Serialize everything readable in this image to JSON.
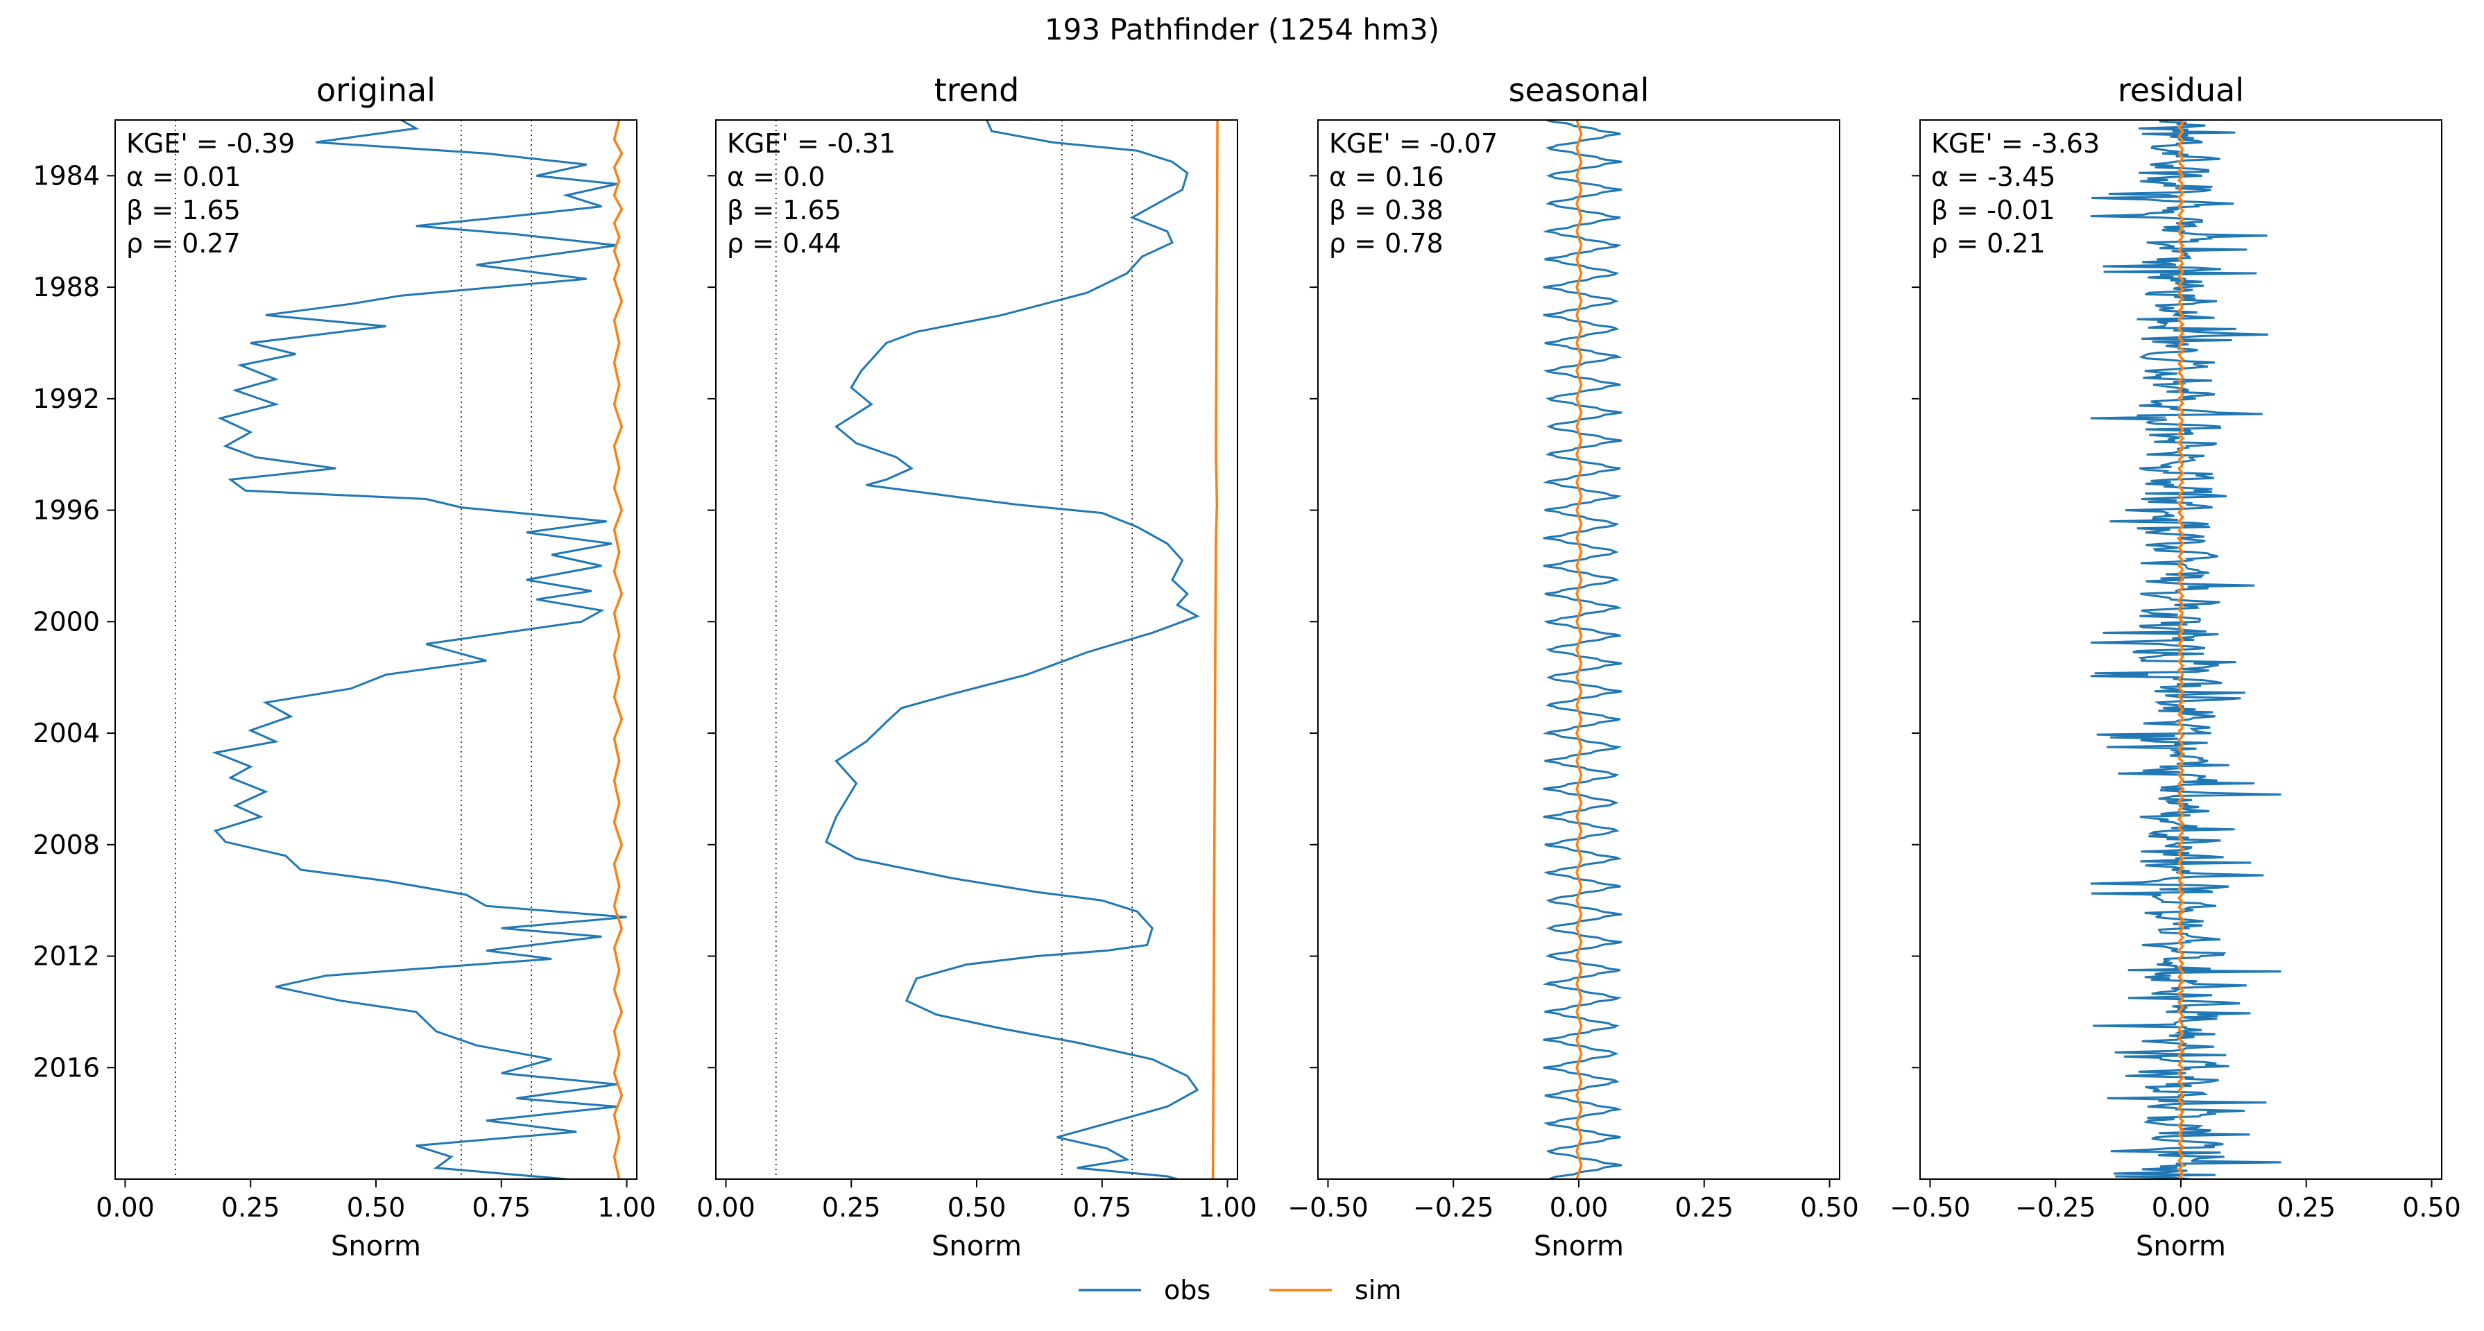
{
  "suptitle": "193  Pathfinder (1254 hm3)",
  "colors": {
    "obs": "#1f77b4",
    "sim": "#ff7f0e",
    "axis": "#000000"
  },
  "legend": {
    "obs_label": "obs",
    "sim_label": "sim",
    "placement": "lower-center"
  },
  "chart_data": [
    {
      "type": "line",
      "title": "original",
      "xlabel": "Snorm",
      "xlim": [
        -0.02,
        1.02
      ],
      "xticks": [
        "0.00",
        "0.25",
        "0.50",
        "0.75",
        "1.00"
      ],
      "ylim": [
        1982.0,
        2020.0
      ],
      "yticks": [
        "1984",
        "1988",
        "1992",
        "1996",
        "2000",
        "2004",
        "2008",
        "2012",
        "2016"
      ],
      "show_yticklabels": true,
      "vlines": [
        0.1,
        0.67,
        0.81
      ],
      "stats": [
        "KGE' = -0.39",
        "α = 0.01",
        "β = 1.65",
        "ρ = 0.27"
      ],
      "obs_points": [
        [
          0.55,
          1982.0
        ],
        [
          0.58,
          1982.3
        ],
        [
          0.38,
          1982.8
        ],
        [
          0.72,
          1983.2
        ],
        [
          0.92,
          1983.6
        ],
        [
          0.82,
          1984.0
        ],
        [
          0.98,
          1984.3
        ],
        [
          0.88,
          1984.7
        ],
        [
          0.95,
          1985.1
        ],
        [
          0.8,
          1985.4
        ],
        [
          0.58,
          1985.8
        ],
        [
          0.78,
          1986.1
        ],
        [
          0.98,
          1986.5
        ],
        [
          0.82,
          1986.9
        ],
        [
          0.7,
          1987.2
        ],
        [
          0.92,
          1987.7
        ],
        [
          0.55,
          1988.3
        ],
        [
          0.45,
          1988.6
        ],
        [
          0.28,
          1989.0
        ],
        [
          0.52,
          1989.4
        ],
        [
          0.25,
          1990.0
        ],
        [
          0.34,
          1990.4
        ],
        [
          0.23,
          1990.8
        ],
        [
          0.3,
          1991.3
        ],
        [
          0.22,
          1991.7
        ],
        [
          0.3,
          1992.2
        ],
        [
          0.19,
          1992.7
        ],
        [
          0.25,
          1993.2
        ],
        [
          0.2,
          1993.7
        ],
        [
          0.26,
          1994.1
        ],
        [
          0.42,
          1994.5
        ],
        [
          0.21,
          1994.9
        ],
        [
          0.24,
          1995.3
        ],
        [
          0.6,
          1995.6
        ],
        [
          0.67,
          1995.9
        ],
        [
          0.96,
          1996.4
        ],
        [
          0.8,
          1996.8
        ],
        [
          0.97,
          1997.2
        ],
        [
          0.85,
          1997.6
        ],
        [
          0.95,
          1998.0
        ],
        [
          0.8,
          1998.5
        ],
        [
          0.93,
          1998.9
        ],
        [
          0.82,
          1999.2
        ],
        [
          0.95,
          1999.6
        ],
        [
          0.91,
          2000.0
        ],
        [
          0.6,
          2000.8
        ],
        [
          0.72,
          2001.4
        ],
        [
          0.52,
          2001.9
        ],
        [
          0.45,
          2002.4
        ],
        [
          0.28,
          2002.9
        ],
        [
          0.33,
          2003.4
        ],
        [
          0.25,
          2003.9
        ],
        [
          0.3,
          2004.3
        ],
        [
          0.18,
          2004.7
        ],
        [
          0.25,
          2005.2
        ],
        [
          0.21,
          2005.6
        ],
        [
          0.28,
          2006.1
        ],
        [
          0.22,
          2006.6
        ],
        [
          0.27,
          2007.0
        ],
        [
          0.18,
          2007.5
        ],
        [
          0.2,
          2007.9
        ],
        [
          0.32,
          2008.4
        ],
        [
          0.35,
          2008.9
        ],
        [
          0.52,
          2009.3
        ],
        [
          0.68,
          2009.8
        ],
        [
          0.72,
          2010.2
        ],
        [
          1.0,
          2010.6
        ],
        [
          0.75,
          2011.0
        ],
        [
          0.95,
          2011.3
        ],
        [
          0.72,
          2011.8
        ],
        [
          0.85,
          2012.1
        ],
        [
          0.4,
          2012.7
        ],
        [
          0.3,
          2013.1
        ],
        [
          0.43,
          2013.6
        ],
        [
          0.58,
          2014.0
        ],
        [
          0.62,
          2014.7
        ],
        [
          0.7,
          2015.2
        ],
        [
          0.85,
          2015.7
        ],
        [
          0.75,
          2016.2
        ],
        [
          0.98,
          2016.6
        ],
        [
          0.78,
          2017.1
        ],
        [
          0.98,
          2017.4
        ],
        [
          0.72,
          2017.9
        ],
        [
          0.9,
          2018.3
        ],
        [
          0.58,
          2018.8
        ],
        [
          0.65,
          2019.2
        ],
        [
          0.62,
          2019.6
        ],
        [
          0.88,
          2020.0
        ]
      ],
      "sim_points": [
        [
          0.985,
          1982.0
        ],
        [
          0.975,
          1982.7
        ],
        [
          0.99,
          1983.2
        ],
        [
          0.975,
          1983.7
        ],
        [
          0.985,
          1984.2
        ],
        [
          0.975,
          1984.7
        ],
        [
          0.99,
          1985.2
        ],
        [
          0.975,
          1985.7
        ],
        [
          0.985,
          1986.2
        ],
        [
          0.975,
          1986.7
        ],
        [
          0.985,
          1987.2
        ],
        [
          0.975,
          1987.7
        ],
        [
          0.99,
          1988.5
        ],
        [
          0.975,
          1989.2
        ],
        [
          0.985,
          1990.0
        ],
        [
          0.975,
          1990.7
        ],
        [
          0.985,
          1991.5
        ],
        [
          0.975,
          1992.2
        ],
        [
          0.99,
          1993.0
        ],
        [
          0.975,
          1993.7
        ],
        [
          0.985,
          1994.5
        ],
        [
          0.975,
          1995.2
        ],
        [
          0.99,
          1996.0
        ],
        [
          0.975,
          1996.7
        ],
        [
          0.985,
          1997.5
        ],
        [
          0.975,
          1998.2
        ],
        [
          0.99,
          1999.0
        ],
        [
          0.975,
          1999.7
        ],
        [
          0.985,
          2000.5
        ],
        [
          0.975,
          2001.2
        ],
        [
          0.985,
          2002.0
        ],
        [
          0.975,
          2002.7
        ],
        [
          0.99,
          2003.5
        ],
        [
          0.975,
          2004.2
        ],
        [
          0.985,
          2005.0
        ],
        [
          0.975,
          2005.7
        ],
        [
          0.985,
          2006.5
        ],
        [
          0.975,
          2007.2
        ],
        [
          0.99,
          2008.0
        ],
        [
          0.975,
          2008.7
        ],
        [
          0.985,
          2009.5
        ],
        [
          0.975,
          2010.2
        ],
        [
          0.99,
          2011.0
        ],
        [
          0.975,
          2011.7
        ],
        [
          0.985,
          2012.5
        ],
        [
          0.975,
          2013.2
        ],
        [
          0.99,
          2014.0
        ],
        [
          0.975,
          2014.7
        ],
        [
          0.985,
          2015.5
        ],
        [
          0.975,
          2016.2
        ],
        [
          0.99,
          2017.0
        ],
        [
          0.975,
          2017.7
        ],
        [
          0.985,
          2018.5
        ],
        [
          0.975,
          2019.2
        ],
        [
          0.985,
          2020.0
        ]
      ]
    },
    {
      "type": "line",
      "title": "trend",
      "xlabel": "Snorm",
      "xlim": [
        -0.02,
        1.02
      ],
      "xticks": [
        "0.00",
        "0.25",
        "0.50",
        "0.75",
        "1.00"
      ],
      "ylim": [
        1982.0,
        2020.0
      ],
      "yticks": [
        "1984",
        "1988",
        "1992",
        "1996",
        "2000",
        "2004",
        "2008",
        "2012",
        "2016"
      ],
      "show_yticklabels": false,
      "vlines": [
        0.1,
        0.67,
        0.81
      ],
      "stats": [
        "KGE' = -0.31",
        "α = 0.0",
        "β = 1.65",
        "ρ = 0.44"
      ],
      "obs_points": [
        [
          0.52,
          1982.0
        ],
        [
          0.53,
          1982.4
        ],
        [
          0.65,
          1982.8
        ],
        [
          0.82,
          1983.1
        ],
        [
          0.89,
          1983.5
        ],
        [
          0.92,
          1983.9
        ],
        [
          0.91,
          1984.5
        ],
        [
          0.86,
          1985.0
        ],
        [
          0.81,
          1985.5
        ],
        [
          0.88,
          1986.0
        ],
        [
          0.89,
          1986.4
        ],
        [
          0.83,
          1986.9
        ],
        [
          0.8,
          1987.5
        ],
        [
          0.72,
          1988.2
        ],
        [
          0.55,
          1989.0
        ],
        [
          0.38,
          1989.6
        ],
        [
          0.32,
          1990.0
        ],
        [
          0.3,
          1990.4
        ],
        [
          0.27,
          1991.0
        ],
        [
          0.25,
          1991.6
        ],
        [
          0.29,
          1992.2
        ],
        [
          0.22,
          1993.0
        ],
        [
          0.26,
          1993.6
        ],
        [
          0.34,
          1994.1
        ],
        [
          0.37,
          1994.5
        ],
        [
          0.32,
          1994.9
        ],
        [
          0.28,
          1995.1
        ],
        [
          0.45,
          1995.5
        ],
        [
          0.58,
          1995.8
        ],
        [
          0.75,
          1996.1
        ],
        [
          0.82,
          1996.6
        ],
        [
          0.88,
          1997.2
        ],
        [
          0.91,
          1997.8
        ],
        [
          0.89,
          1998.5
        ],
        [
          0.92,
          1999.0
        ],
        [
          0.9,
          1999.4
        ],
        [
          0.94,
          1999.8
        ],
        [
          0.85,
          2000.4
        ],
        [
          0.72,
          2001.1
        ],
        [
          0.6,
          2001.9
        ],
        [
          0.45,
          2002.6
        ],
        [
          0.35,
          2003.1
        ],
        [
          0.32,
          2003.6
        ],
        [
          0.28,
          2004.3
        ],
        [
          0.22,
          2005.0
        ],
        [
          0.24,
          2005.4
        ],
        [
          0.26,
          2005.8
        ],
        [
          0.24,
          2006.4
        ],
        [
          0.22,
          2007.0
        ],
        [
          0.2,
          2007.9
        ],
        [
          0.26,
          2008.5
        ],
        [
          0.45,
          2009.2
        ],
        [
          0.62,
          2009.7
        ],
        [
          0.75,
          2010.0
        ],
        [
          0.82,
          2010.4
        ],
        [
          0.85,
          2011.0
        ],
        [
          0.84,
          2011.6
        ],
        [
          0.76,
          2011.8
        ],
        [
          0.62,
          2012.0
        ],
        [
          0.48,
          2012.3
        ],
        [
          0.38,
          2012.8
        ],
        [
          0.36,
          2013.6
        ],
        [
          0.42,
          2014.1
        ],
        [
          0.55,
          2014.6
        ],
        [
          0.7,
          2015.1
        ],
        [
          0.85,
          2015.7
        ],
        [
          0.92,
          2016.3
        ],
        [
          0.94,
          2016.8
        ],
        [
          0.88,
          2017.4
        ],
        [
          0.72,
          2018.2
        ],
        [
          0.66,
          2018.5
        ],
        [
          0.76,
          2018.9
        ],
        [
          0.8,
          2019.3
        ],
        [
          0.7,
          2019.6
        ],
        [
          0.88,
          2019.9
        ],
        [
          0.9,
          2020.0
        ]
      ],
      "sim_points": [
        [
          0.98,
          1982.0
        ],
        [
          0.979,
          1986.0
        ],
        [
          0.978,
          1990.0
        ],
        [
          0.977,
          1994.0
        ],
        [
          0.979,
          1995.8
        ],
        [
          0.977,
          1997.0
        ],
        [
          0.976,
          2000.0
        ],
        [
          0.975,
          2004.0
        ],
        [
          0.974,
          2008.0
        ],
        [
          0.973,
          2012.0
        ],
        [
          0.972,
          2016.0
        ],
        [
          0.971,
          2020.0
        ]
      ]
    },
    {
      "type": "line",
      "title": "seasonal",
      "xlabel": "Snorm",
      "xlim": [
        -0.52,
        0.52
      ],
      "xticks": [
        "−0.50",
        "−0.25",
        "0.00",
        "0.25",
        "0.50"
      ],
      "ylim": [
        1982.0,
        2020.0
      ],
      "yticks": [
        "1984",
        "1988",
        "1992",
        "1996",
        "2000",
        "2004",
        "2008",
        "2012",
        "2016"
      ],
      "show_yticklabels": false,
      "vlines": [],
      "stats": [
        "KGE' = -0.07",
        "α = 0.16",
        "β = 0.38",
        "ρ = 0.78"
      ],
      "obs_points": "seasonal: amplitude -0.07 to 0.08, period 1 year",
      "sim_points": "seasonal: amplitude -0.005 to 0.005, period 1 year"
    },
    {
      "type": "line",
      "title": "residual",
      "xlabel": "Snorm",
      "xlim": [
        -0.52,
        0.52
      ],
      "xticks": [
        "−0.50",
        "−0.25",
        "0.00",
        "0.25",
        "0.50"
      ],
      "ylim": [
        1982.0,
        2020.0
      ],
      "yticks": [
        "1984",
        "1988",
        "1992",
        "1996",
        "2000",
        "2004",
        "2008",
        "2012",
        "2016"
      ],
      "show_yticklabels": false,
      "vlines": [],
      "stats": [
        "KGE' = -3.63",
        "α = -3.45",
        "β = -0.01",
        "ρ = 0.21"
      ],
      "obs_points": "noisy: range -0.18 to 0.20",
      "sim_points": "near zero: range -0.01 to 0.01"
    }
  ]
}
